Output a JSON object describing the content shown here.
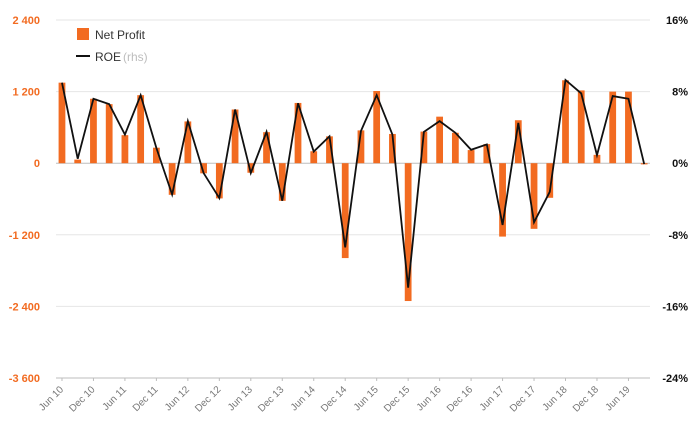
{
  "chart_data": {
    "type": "bar",
    "title": "",
    "xlabel": "",
    "ylabel": "",
    "y2label": "",
    "ylim": [
      -3600,
      2400
    ],
    "y2lim": [
      -24,
      16
    ],
    "left_ticks": [
      "2 400",
      "1 200",
      "0",
      "-1 200",
      "-2 400",
      "-3 600"
    ],
    "right_ticks": [
      "16%",
      "8%",
      "0%",
      "-8%",
      "-16%",
      "-24%"
    ],
    "x_tick_labels": [
      "Jun 10",
      "Dec 10",
      "Jun 11",
      "Dec 11",
      "Jun 12",
      "Dec 12",
      "Jun 13",
      "Dec 13",
      "Jun 14",
      "Dec 14",
      "Jun 15",
      "Dec 15",
      "Jun 16",
      "Dec 16",
      "Jun 17",
      "Dec 17",
      "Jun 18",
      "Dec 18",
      "Jun 19"
    ],
    "categories": [
      "Jun 10",
      "Sep 10",
      "Dec 10",
      "Mar 11",
      "Jun 11",
      "Sep 11",
      "Dec 11",
      "Mar 12",
      "Jun 12",
      "Sep 12",
      "Dec 12",
      "Mar 13",
      "Jun 13",
      "Sep 13",
      "Dec 13",
      "Mar 14",
      "Jun 14",
      "Sep 14",
      "Dec 14",
      "Mar 15",
      "Jun 15",
      "Sep 15",
      "Dec 15",
      "Mar 16",
      "Jun 16",
      "Sep 16",
      "Dec 16",
      "Mar 17",
      "Jun 17",
      "Sep 17",
      "Dec 17",
      "Mar 18",
      "Jun 18",
      "Sep 18",
      "Dec 18",
      "Mar 19",
      "Jun 19",
      "Sep 19"
    ],
    "series": [
      {
        "name": "Net Profit",
        "type": "bar",
        "axis": "left",
        "color": "#f26b21",
        "values": [
          1350,
          60,
          1080,
          990,
          470,
          1140,
          260,
          -530,
          700,
          -170,
          -590,
          900,
          -160,
          520,
          -630,
          1010,
          200,
          450,
          -1590,
          550,
          1210,
          490,
          -2310,
          530,
          780,
          510,
          220,
          320,
          -1230,
          720,
          -1100,
          -580,
          1390,
          1220,
          140,
          1200,
          1200,
          -20
        ]
      },
      {
        "name": "ROE",
        "type": "line",
        "axis": "right",
        "color": "#111111",
        "values": [
          9.0,
          0.5,
          7.2,
          6.6,
          3.2,
          7.6,
          1.7,
          -3.5,
          4.7,
          -1.1,
          -3.9,
          6.0,
          -1.1,
          3.5,
          -4.2,
          6.7,
          1.3,
          3.0,
          -9.4,
          3.6,
          7.6,
          3.2,
          -13.9,
          3.5,
          4.7,
          3.4,
          1.5,
          2.1,
          -6.9,
          4.5,
          -6.6,
          -3.2,
          9.3,
          7.8,
          0.9,
          7.5,
          7.2,
          -0.1
        ]
      }
    ],
    "legend": [
      {
        "label": "Net Profit",
        "suffix": "",
        "kind": "bar",
        "color": "#f26b21"
      },
      {
        "label": "ROE",
        "suffix": "(rhs)",
        "kind": "line",
        "color": "#111111"
      }
    ],
    "legend_position": "top-left",
    "grid": true
  }
}
